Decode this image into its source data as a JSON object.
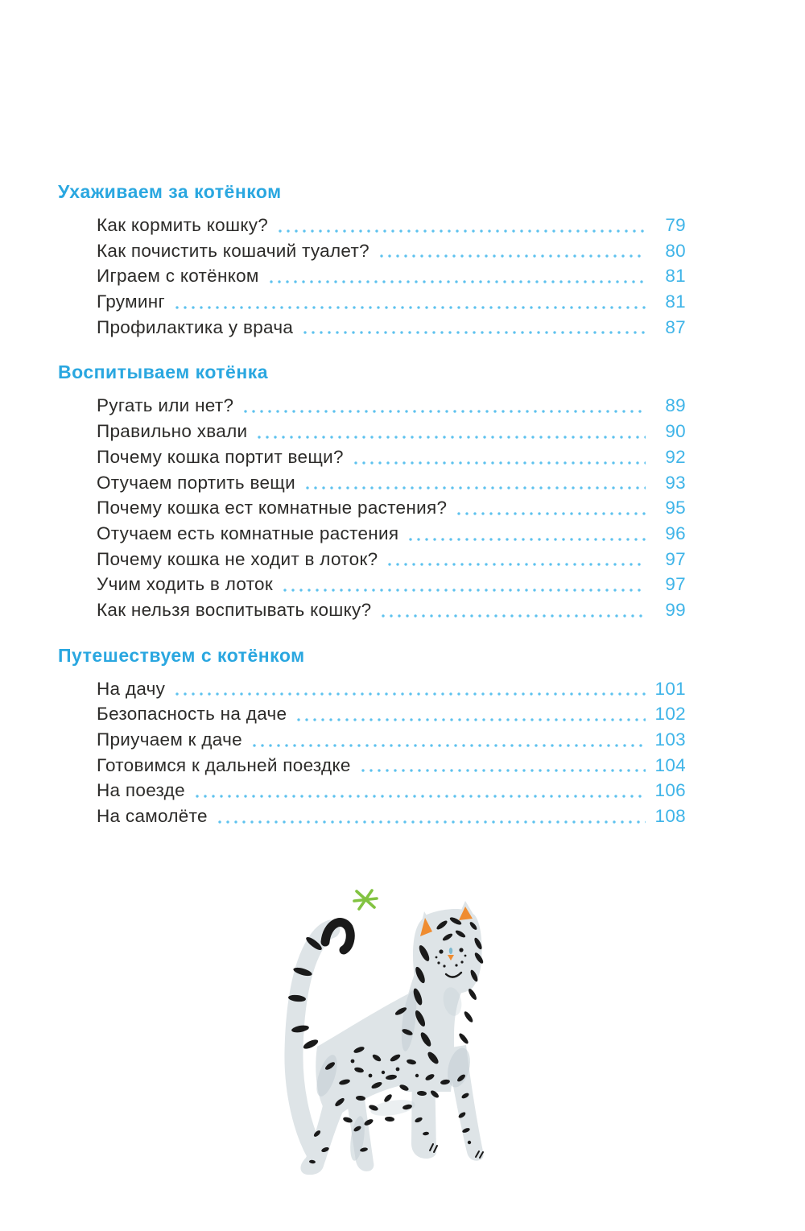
{
  "document": {
    "type": "book-table-of-contents",
    "language": "ru"
  },
  "toc": {
    "sections": [
      {
        "heading": "Ухаживаем за котёнком",
        "entries": [
          {
            "title": "Как кормить кошку?",
            "page": "79"
          },
          {
            "title": "Как почистить кошачий туалет?",
            "page": "80"
          },
          {
            "title": "Играем с котёнком",
            "page": "81"
          },
          {
            "title": "Груминг",
            "page": "81"
          },
          {
            "title": "Профилактика у врача",
            "page": "87"
          }
        ]
      },
      {
        "heading": "Воспитываем котёнка",
        "entries": [
          {
            "title": "Ругать или нет?",
            "page": "89"
          },
          {
            "title": "Правильно хвали",
            "page": "90"
          },
          {
            "title": "Почему кошка портит вещи?",
            "page": "92"
          },
          {
            "title": "Отучаем портить вещи",
            "page": "93"
          },
          {
            "title": "Почему кошка ест комнатные растения?",
            "page": "95"
          },
          {
            "title": "Отучаем есть комнатные растения",
            "page": "96"
          },
          {
            "title": "Почему кошка не ходит в лоток?",
            "page": "97"
          },
          {
            "title": "Учим ходить в лоток",
            "page": "97"
          },
          {
            "title": "Как нельзя воспитывать кошку?",
            "page": "99"
          }
        ]
      },
      {
        "heading": "Путешествуем с котёнком",
        "entries": [
          {
            "title": "На дачу",
            "page": "101"
          },
          {
            "title": "Безопасность на даче",
            "page": "102"
          },
          {
            "title": "Приучаем к даче",
            "page": "103"
          },
          {
            "title": "Готовимся к дальней поездке",
            "page": "104"
          },
          {
            "title": "На поезде",
            "page": "106"
          },
          {
            "title": "На самолёте",
            "page": "108"
          }
        ]
      }
    ]
  },
  "colors": {
    "page_bg": "#ffffff",
    "heading_blue": "#2aa7e0",
    "number_blue": "#3fb4e8",
    "dot_blue": "#5ec2ee",
    "entry_text": "#2c2b29"
  },
  "illustration": {
    "name": "gray-striped-cat-walking-with-star",
    "body_color": "#dee4e7",
    "shade_color": "#c3ced4",
    "marks_color": "#1a1a1a",
    "ear_color": "#ef8c30",
    "star_color": "#82c341",
    "face_accent": "#7fb9cf"
  }
}
